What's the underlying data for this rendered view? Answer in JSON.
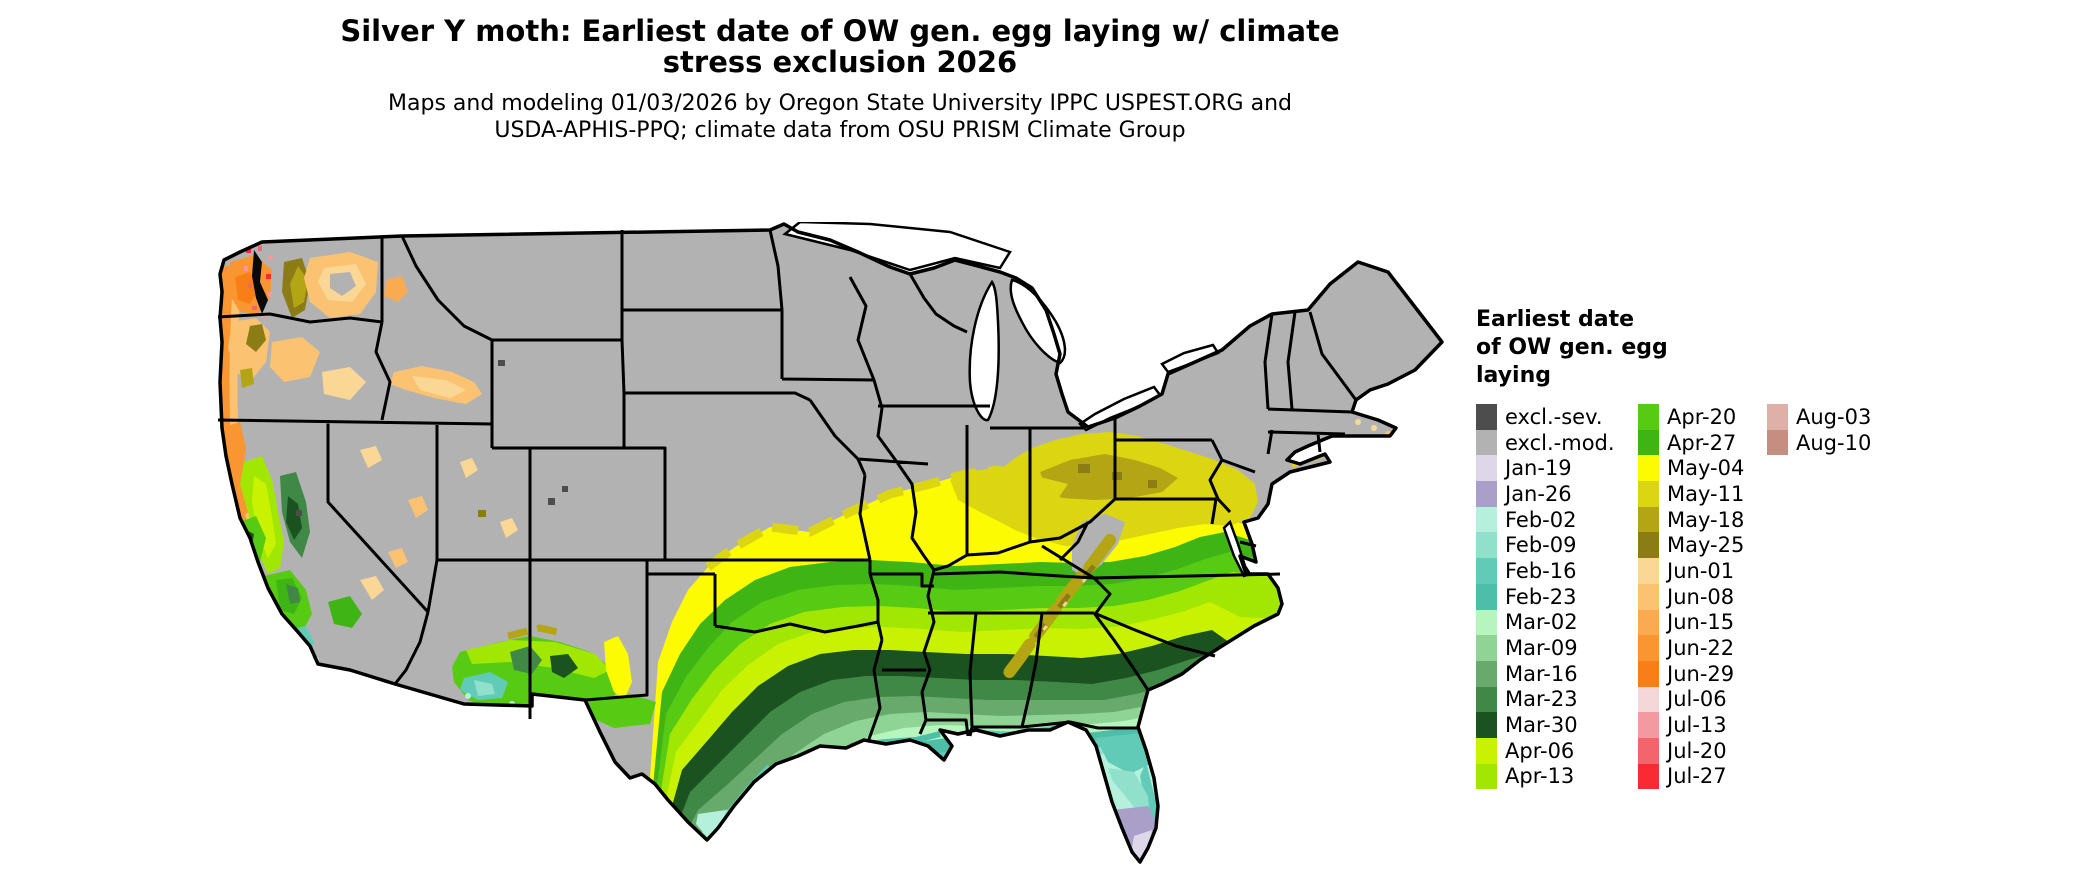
{
  "title": {
    "line1": "Silver Y moth: Earliest date of OW gen. egg laying w/ climate",
    "line2": "stress exclusion 2026"
  },
  "subtitle": {
    "line1": "Maps and modeling 01/03/2026 by Oregon State University IPPC USPEST.ORG and",
    "line2": "USDA-APHIS-PPQ; climate data from OSU PRISM Climate Group"
  },
  "legend": {
    "title_lines": [
      "Earliest date",
      "of OW gen. egg",
      "laying"
    ],
    "columns": [
      [
        "excl.-sev.",
        "excl.-mod.",
        "Jan-19",
        "Jan-26",
        "Feb-02",
        "Feb-09",
        "Feb-16",
        "Feb-23",
        "Mar-02",
        "Mar-09",
        "Mar-16",
        "Mar-23",
        "Mar-30",
        "Apr-06",
        "Apr-13"
      ],
      [
        "Apr-20",
        "Apr-27",
        "May-04",
        "May-11",
        "May-18",
        "May-25",
        "Jun-01",
        "Jun-08",
        "Jun-15",
        "Jun-22",
        "Jun-29",
        "Jul-06",
        "Jul-13",
        "Jul-20",
        "Jul-27"
      ],
      [
        "Aug-03",
        "Aug-10"
      ]
    ]
  },
  "map": {
    "region": "Contiguous United States",
    "state_border_color": "#000000",
    "water_color": "#ffffff",
    "colors": {
      "excl.-sev.": "#4d4d4d",
      "excl.-mod.": "#b2b2b2",
      "Jan-19": "#ded7ea",
      "Jan-26": "#a99fc9",
      "Feb-02": "#b4f0dc",
      "Feb-09": "#90e0cc",
      "Feb-16": "#62cbb8",
      "Feb-23": "#4dbfa8",
      "Mar-02": "#b6f5bd",
      "Mar-09": "#90d495",
      "Mar-16": "#68aa6c",
      "Mar-23": "#3f8846",
      "Mar-30": "#1b5320",
      "Apr-06": "#c9f203",
      "Apr-13": "#a2e703",
      "Apr-20": "#57cb14",
      "Apr-27": "#3fb515",
      "May-04": "#fdfb02",
      "May-11": "#dcd512",
      "May-18": "#b3a513",
      "May-25": "#8c7c15",
      "Jun-01": "#fbd795",
      "Jun-08": "#fbc271",
      "Jun-15": "#faaa50",
      "Jun-22": "#f99632",
      "Jun-29": "#f87f17",
      "Jul-06": "#f4d7d9",
      "Jul-13": "#f29aa0",
      "Jul-20": "#f3656d",
      "Jul-27": "#f92a31",
      "Aug-03": "#dfb0a7",
      "Aug-10": "#c68e80"
    }
  }
}
